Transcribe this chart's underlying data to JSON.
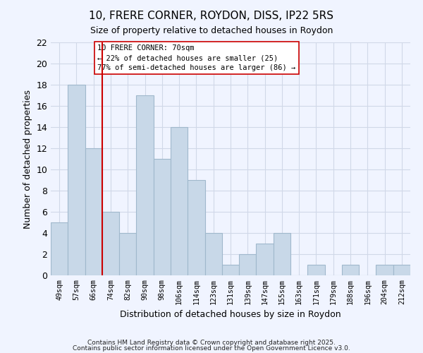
{
  "title": "10, FRERE CORNER, ROYDON, DISS, IP22 5RS",
  "subtitle": "Size of property relative to detached houses in Roydon",
  "xlabel": "Distribution of detached houses by size in Roydon",
  "ylabel": "Number of detached properties",
  "bar_color": "#c8d8e8",
  "bar_edge_color": "#a0b8cc",
  "background_color": "#f0f4ff",
  "grid_color": "#d0d8e8",
  "bins": [
    "49sqm",
    "57sqm",
    "66sqm",
    "74sqm",
    "82sqm",
    "90sqm",
    "98sqm",
    "106sqm",
    "114sqm",
    "123sqm",
    "131sqm",
    "139sqm",
    "147sqm",
    "155sqm",
    "163sqm",
    "171sqm",
    "179sqm",
    "188sqm",
    "196sqm",
    "204sqm",
    "212sqm"
  ],
  "values": [
    5,
    18,
    12,
    6,
    4,
    17,
    11,
    14,
    9,
    4,
    1,
    2,
    3,
    4,
    0,
    1,
    0,
    1,
    0,
    1,
    1
  ],
  "vline_x": 2.5,
  "vline_color": "#cc0000",
  "ylim": [
    0,
    22
  ],
  "yticks": [
    0,
    2,
    4,
    6,
    8,
    10,
    12,
    14,
    16,
    18,
    20,
    22
  ],
  "annotation_line1": "10 FRERE CORNER: 70sqm",
  "annotation_line2": "← 22% of detached houses are smaller (25)",
  "annotation_line3": "77% of semi-detached houses are larger (86) →",
  "footnote1": "Contains HM Land Registry data © Crown copyright and database right 2025.",
  "footnote2": "Contains public sector information licensed under the Open Government Licence v3.0."
}
